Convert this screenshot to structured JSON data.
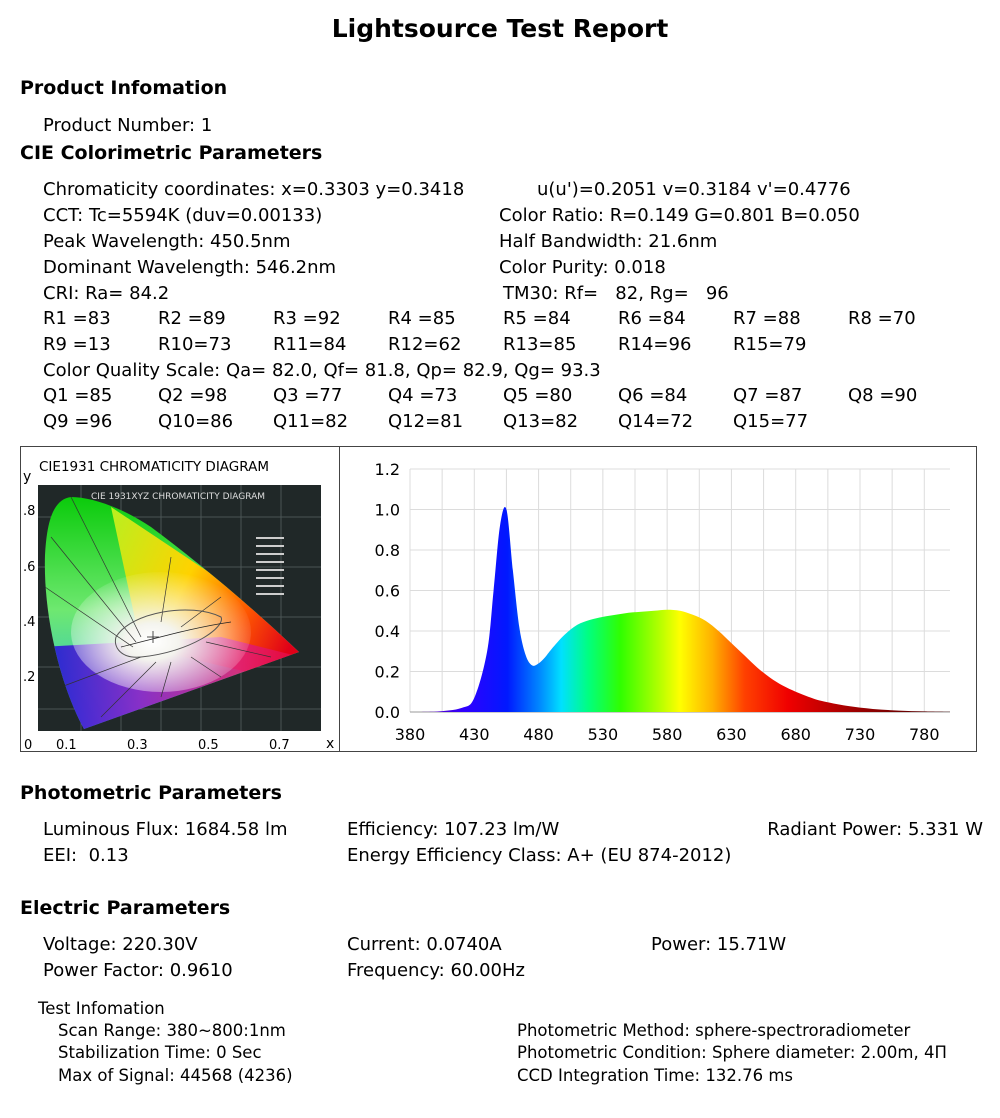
{
  "title": "Lightsource Test Report",
  "product": {
    "heading": "Product Infomation",
    "number": "Product Number: 1"
  },
  "cie": {
    "heading": "CIE Colorimetric Parameters",
    "chroma": "Chromaticity coordinates: x=0.3303 y=0.3418",
    "uv": "u(u')=0.2051 v=0.3184 v'=0.4776",
    "cct": "CCT: Tc=5594K (duv=0.00133)",
    "color_ratio": "Color Ratio: R=0.149  G=0.801  B=0.050",
    "peak": "Peak Wavelength: 450.5nm",
    "half_bw": "Half Bandwidth: 21.6nm",
    "dominant": "Dominant Wavelength: 546.2nm",
    "purity": "Color Purity: 0.018",
    "cri": "CRI: Ra= 84.2",
    "tm30": "TM30: Rf=   82, Rg=   96",
    "r_row1": [
      "R1 =83",
      "R2 =89",
      "R3 =92",
      "R4 =85",
      "R5 =84",
      "R6 =84",
      "R7 =88",
      "R8 =70"
    ],
    "r_row2": [
      "R9 =13",
      "R10=73",
      "R11=84",
      "R12=62",
      "R13=85",
      "R14=96",
      "R15=79"
    ],
    "cqs": "Color Quality Scale: Qa= 82.0, Qf= 81.8, Qp= 82.9, Qg= 93.3",
    "q_row1": [
      "Q1 =85",
      "Q2 =98",
      "Q3 =77",
      "Q4 =73",
      "Q5 =80",
      "Q6 =84",
      "Q7 =87",
      "Q8 =90"
    ],
    "q_row2": [
      "Q9 =96",
      "Q10=86",
      "Q11=82",
      "Q12=81",
      "Q13=82",
      "Q14=72",
      "Q15=77"
    ]
  },
  "cie_diagram": {
    "title": "CIE1931 CHROMATICITY DIAGRAM",
    "inner_title": "CIE 1931XYZ CHROMATICITY DIAGRAM",
    "y_label": "y",
    "x_label": "x",
    "y_ticks": [
      ".8",
      ".6",
      ".4",
      ".2"
    ],
    "x_ticks": [
      "0",
      "0.1",
      "0.3",
      "0.5",
      "0.7"
    ]
  },
  "chart_data": {
    "type": "area",
    "x": [
      380,
      400,
      420,
      430,
      440,
      445,
      450,
      455,
      460,
      465,
      470,
      475,
      480,
      485,
      490,
      500,
      510,
      520,
      530,
      540,
      550,
      560,
      570,
      580,
      590,
      600,
      610,
      620,
      630,
      640,
      650,
      660,
      670,
      680,
      690,
      700,
      720,
      740,
      760,
      780,
      800
    ],
    "y": [
      0.0,
      0.002,
      0.02,
      0.07,
      0.3,
      0.6,
      0.92,
      1.0,
      0.7,
      0.42,
      0.28,
      0.23,
      0.24,
      0.27,
      0.31,
      0.38,
      0.43,
      0.455,
      0.47,
      0.48,
      0.49,
      0.495,
      0.5,
      0.505,
      0.5,
      0.48,
      0.45,
      0.4,
      0.34,
      0.28,
      0.22,
      0.17,
      0.13,
      0.1,
      0.075,
      0.055,
      0.03,
      0.015,
      0.007,
      0.003,
      0.001
    ],
    "xlim": [
      380,
      800
    ],
    "ylim": [
      0,
      1.2
    ],
    "x_ticks": [
      380,
      430,
      480,
      530,
      580,
      630,
      680,
      730,
      780
    ],
    "y_ticks": [
      "0.0",
      "0.2",
      "0.4",
      "0.6",
      "0.8",
      "1.0",
      "1.2"
    ],
    "grid": true
  },
  "photometric": {
    "heading": "Photometric Parameters",
    "flux": "Luminous Flux: 1684.58 lm",
    "efficiency": "Efficiency: 107.23 lm/W",
    "radiant": "Radiant Power: 5.331 W",
    "eei": "EEI:  0.13",
    "class": "Energy Efficiency Class: A+ (EU 874-2012)"
  },
  "electric": {
    "heading": "Electric Parameters",
    "voltage": "Voltage: 220.30V",
    "current": "Current: 0.0740A",
    "power": "Power: 15.71W",
    "pf": "Power Factor: 0.9610",
    "freq": "Frequency: 60.00Hz"
  },
  "test": {
    "heading": "Test Infomation",
    "scan": "Scan Range: 380~800:1nm",
    "stab": "Stabilization Time: 0 Sec",
    "maxsig": "Max of Signal: 44568 (4236)",
    "method": "Photometric Method: sphere-spectroradiometer",
    "condition": "Photometric Condition: Sphere diameter: 2.00m, 4Π",
    "ccd": "CCD Integration Time: 132.76 ms"
  }
}
